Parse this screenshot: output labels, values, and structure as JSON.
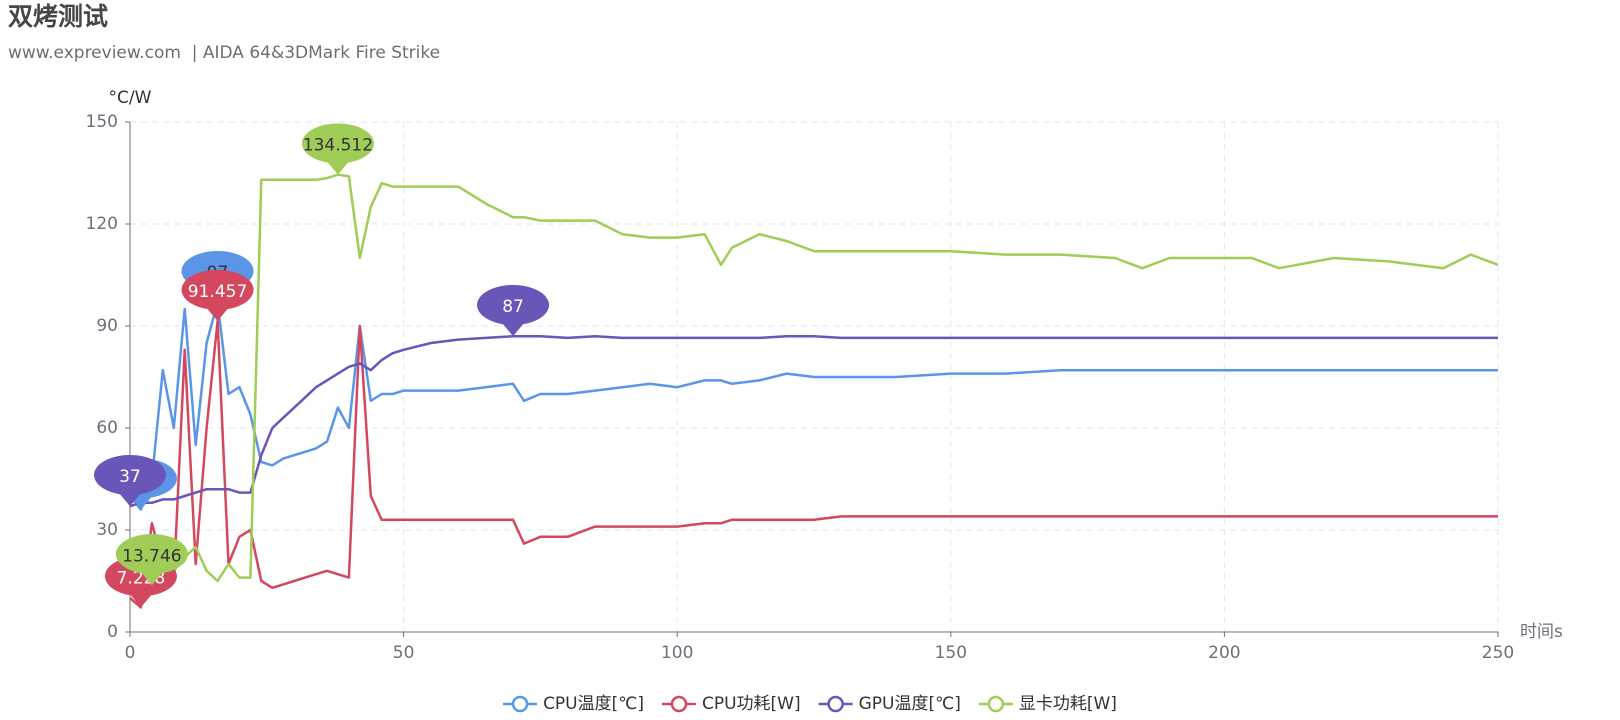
{
  "chart_data": {
    "type": "line",
    "title": "双烤测试",
    "subtitle": "www.expreview.com  | AIDA 64&3DMark Fire Strike",
    "y_label": "°C/W",
    "x_label": "时间s",
    "xlim": [
      0,
      250
    ],
    "xticks": [
      0,
      50,
      100,
      150,
      200,
      250
    ],
    "ylim": [
      0,
      150
    ],
    "yticks": [
      0,
      30,
      60,
      90,
      120,
      150
    ],
    "grid": true,
    "legend": "bottom",
    "x": [
      0,
      2,
      4,
      6,
      8,
      10,
      12,
      14,
      16,
      18,
      20,
      22,
      24,
      26,
      28,
      30,
      32,
      34,
      36,
      38,
      40,
      42,
      44,
      46,
      48,
      50,
      55,
      60,
      65,
      70,
      72,
      75,
      80,
      85,
      90,
      95,
      100,
      105,
      108,
      110,
      115,
      120,
      125,
      130,
      140,
      150,
      160,
      170,
      180,
      185,
      190,
      200,
      205,
      210,
      220,
      230,
      240,
      245,
      250
    ],
    "series": [
      {
        "name": "CPU温度[℃]",
        "color": "#5b95e8",
        "values": [
          40,
          36,
          45,
          77,
          60,
          95,
          55,
          85,
          97,
          70,
          72,
          64,
          50,
          49,
          51,
          52,
          53,
          54,
          56,
          66,
          60,
          90,
          68,
          70,
          70,
          71,
          71,
          71,
          72,
          73,
          68,
          70,
          70,
          71,
          72,
          73,
          72,
          74,
          74,
          73,
          74,
          76,
          75,
          75,
          75,
          76,
          76,
          77,
          77,
          77,
          77,
          77,
          77,
          77,
          77,
          77,
          77,
          77,
          77
        ],
        "markPoints": [
          {
            "x": 16,
            "value": 97
          },
          {
            "x": 2,
            "value": 36
          }
        ]
      },
      {
        "name": "CPU功耗[W]",
        "color": "#d3485f",
        "values": [
          10,
          7.228,
          32,
          20,
          15,
          83,
          20,
          60,
          91.457,
          20,
          28,
          30,
          15,
          13,
          14,
          15,
          16,
          17,
          18,
          17,
          16,
          90,
          40,
          33,
          33,
          33,
          33,
          33,
          33,
          33,
          26,
          28,
          28,
          31,
          31,
          31,
          31,
          32,
          32,
          33,
          33,
          33,
          33,
          34,
          34,
          34,
          34,
          34,
          34,
          34,
          34,
          34,
          34,
          34,
          34,
          34,
          34,
          34,
          34
        ],
        "markPoints": [
          {
            "x": 16,
            "value": 91.457
          },
          {
            "x": 2,
            "value": 7.228
          }
        ]
      },
      {
        "name": "GPU温度[℃]",
        "color": "#6a55b8",
        "values": [
          37,
          38,
          38,
          39,
          39,
          40,
          41,
          42,
          42,
          42,
          41,
          41,
          52,
          60,
          63,
          66,
          69,
          72,
          74,
          76,
          78,
          79,
          77,
          80,
          82,
          83,
          85,
          86,
          86.5,
          87,
          87,
          87,
          86.5,
          87,
          86.5,
          86.5,
          86.5,
          86.5,
          86.5,
          86.5,
          86.5,
          87,
          87,
          86.5,
          86.5,
          86.5,
          86.5,
          86.5,
          86.5,
          86.5,
          86.5,
          86.5,
          86.5,
          86.5,
          86.5,
          86.5,
          86.5,
          86.5,
          86.5
        ],
        "markPoints": [
          {
            "x": 70,
            "value": 87
          },
          {
            "x": 0,
            "value": 37
          }
        ]
      },
      {
        "name": "显卡功耗[W]",
        "color": "#9fcd57",
        "values": [
          16,
          14,
          13.746,
          15,
          18,
          22,
          25,
          18,
          15,
          20,
          16,
          16,
          133,
          133,
          133,
          133,
          133,
          133,
          133.5,
          134.512,
          134,
          110,
          125,
          132,
          131,
          131,
          131,
          131,
          126,
          122,
          122,
          121,
          121,
          121,
          117,
          116,
          116,
          117,
          108,
          113,
          117,
          115,
          112,
          112,
          112,
          112,
          111,
          111,
          110,
          107,
          110,
          110,
          110,
          107,
          110,
          109,
          107,
          111,
          108
        ],
        "markPoints": [
          {
            "x": 38,
            "value": 134.512
          },
          {
            "x": 4,
            "value": 13.746
          }
        ]
      }
    ]
  }
}
